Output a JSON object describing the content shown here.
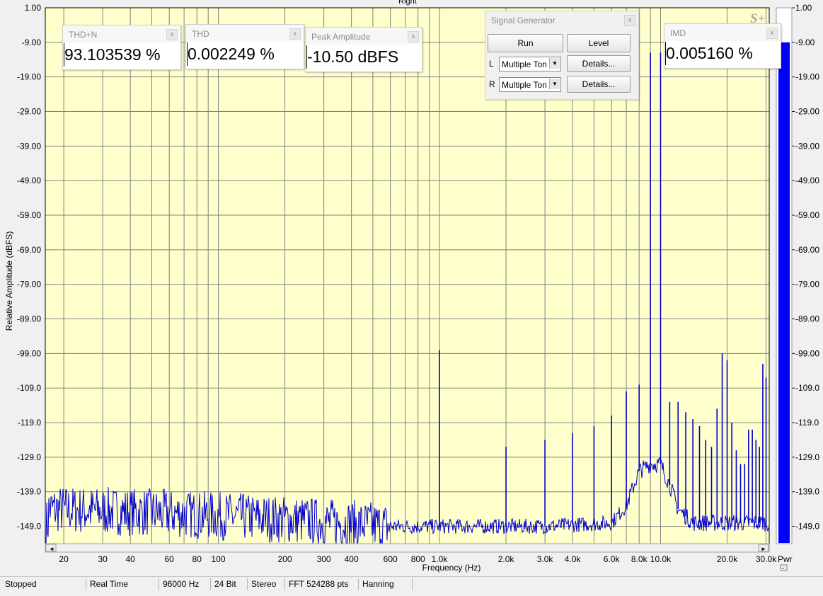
{
  "window": {
    "channel_title": "Right",
    "logo": "S+"
  },
  "meters": {
    "thdn": {
      "label": "THD+N",
      "value": "93.103539 %"
    },
    "thd": {
      "label": "THD",
      "value": "0.002249 %"
    },
    "peak": {
      "label": "Peak Amplitude",
      "value": "-10.50 dBFS"
    },
    "imd": {
      "label": "IMD",
      "value": "0.005160 %"
    }
  },
  "signal_generator": {
    "title": "Signal Generator",
    "run_label": "Run",
    "level_label": "Level",
    "left_label": "L",
    "right_label": "R",
    "left_select": "Multiple Ton",
    "right_select": "Multiple Ton",
    "details_label": "Details..."
  },
  "power_meter": {
    "label": "Pwr",
    "level_dbfs": -9.0,
    "color": "#0000ff"
  },
  "statusbar": {
    "state": "Stopped",
    "mode": "Real Time",
    "rate": "96000 Hz",
    "bits": "24 Bit",
    "channels": "Stereo",
    "fft": "FFT 524288 pts",
    "window": "Hanning"
  },
  "colors": {
    "plot_bg": "#ffffcc",
    "trace": "#0000cc",
    "grid": "#808080"
  },
  "chart_data": {
    "type": "line",
    "title": "Right",
    "xlabel": "Frequency (Hz)",
    "ylabel": "Relative Amplitude (dBFS)",
    "x_scale": "log",
    "xlim": [
      16.5,
      31000
    ],
    "ylim": [
      -154,
      1
    ],
    "grid": true,
    "x_ticks": [
      {
        "v": 20,
        "label": "20"
      },
      {
        "v": 30,
        "label": "30"
      },
      {
        "v": 40,
        "label": "40"
      },
      {
        "v": 60,
        "label": "60"
      },
      {
        "v": 80,
        "label": "80"
      },
      {
        "v": 100,
        "label": "100"
      },
      {
        "v": 200,
        "label": "200"
      },
      {
        "v": 300,
        "label": "300"
      },
      {
        "v": 400,
        "label": "400"
      },
      {
        "v": 600,
        "label": "600"
      },
      {
        "v": 800,
        "label": "800"
      },
      {
        "v": 1000,
        "label": "1.0k"
      },
      {
        "v": 2000,
        "label": "2.0k"
      },
      {
        "v": 3000,
        "label": "3.0k"
      },
      {
        "v": 4000,
        "label": "4.0k"
      },
      {
        "v": 6000,
        "label": "6.0k"
      },
      {
        "v": 8000,
        "label": "8.0k"
      },
      {
        "v": 10000,
        "label": "10.0k"
      },
      {
        "v": 20000,
        "label": "20.0k"
      },
      {
        "v": 30000,
        "label": "30.0k"
      }
    ],
    "y_ticks": [
      {
        "v": 1,
        "label": "1.00"
      },
      {
        "v": -9,
        "label": "-9.00"
      },
      {
        "v": -19,
        "label": "-19.00"
      },
      {
        "v": -29,
        "label": "-29.00"
      },
      {
        "v": -39,
        "label": "-39.00"
      },
      {
        "v": -49,
        "label": "-49.00"
      },
      {
        "v": -59,
        "label": "-59.00"
      },
      {
        "v": -69,
        "label": "-69.00"
      },
      {
        "v": -79,
        "label": "-79.00"
      },
      {
        "v": -89,
        "label": "-89.00"
      },
      {
        "v": -99,
        "label": "-99.00"
      },
      {
        "v": -109,
        "label": "-109.0"
      },
      {
        "v": -119,
        "label": "-119.0"
      },
      {
        "v": -129,
        "label": "-129.0"
      },
      {
        "v": -139,
        "label": "-139.0"
      },
      {
        "v": -149,
        "label": "-149.0"
      }
    ],
    "series": [
      {
        "noise_floor": [
          [
            17,
            -144
          ],
          [
            50,
            -145
          ],
          [
            200,
            -147
          ],
          [
            600,
            -149
          ],
          [
            1000,
            -149
          ],
          [
            3000,
            -149
          ],
          [
            6000,
            -148
          ],
          [
            7000,
            -143
          ],
          [
            8000,
            -133
          ],
          [
            9000,
            -131
          ],
          [
            10000,
            -131
          ],
          [
            11000,
            -137
          ],
          [
            12000,
            -144
          ],
          [
            14000,
            -148
          ],
          [
            31000,
            -148
          ]
        ],
        "peaks": [
          [
            1000,
            -98
          ],
          [
            2000,
            -126
          ],
          [
            3000,
            -124
          ],
          [
            4000,
            -122
          ],
          [
            5000,
            -120
          ],
          [
            6000,
            -117
          ],
          [
            7000,
            -110
          ],
          [
            8000,
            -108
          ],
          [
            9000,
            -12
          ],
          [
            10000,
            -12
          ],
          [
            11000,
            -113
          ],
          [
            12000,
            -113
          ],
          [
            13000,
            -116
          ],
          [
            14000,
            -118
          ],
          [
            15000,
            -120
          ],
          [
            16000,
            -124
          ],
          [
            17000,
            -126
          ],
          [
            18000,
            -115
          ],
          [
            19000,
            -99
          ],
          [
            20000,
            -101
          ],
          [
            21000,
            -119
          ],
          [
            22000,
            -127
          ],
          [
            23000,
            -131
          ],
          [
            24000,
            -131
          ],
          [
            25000,
            -121
          ],
          [
            26000,
            -121
          ],
          [
            27000,
            -124
          ],
          [
            28000,
            -126
          ],
          [
            29000,
            -102
          ],
          [
            30000,
            -106
          ]
        ]
      }
    ]
  }
}
